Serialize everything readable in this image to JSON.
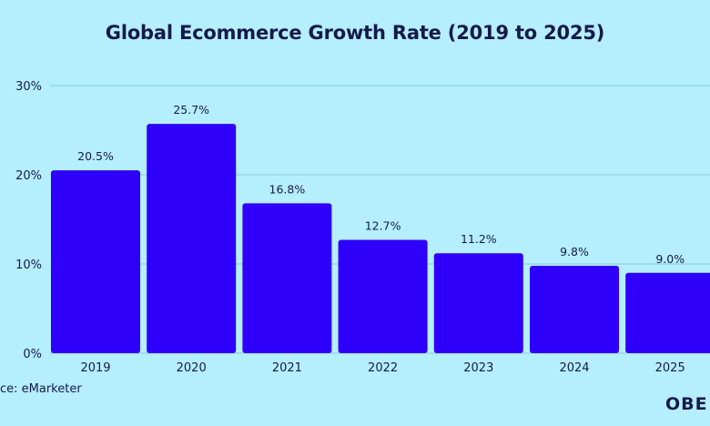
{
  "chart_data": {
    "type": "bar",
    "title": "Global Ecommerce Growth Rate (2019 to 2025)",
    "categories": [
      "2019",
      "2020",
      "2021",
      "2022",
      "2023",
      "2024",
      "2025"
    ],
    "values": [
      20.5,
      25.7,
      16.8,
      12.7,
      11.2,
      9.8,
      9.0
    ],
    "data_labels": [
      "20.5%",
      "25.7%",
      "16.8%",
      "12.7%",
      "11.2%",
      "9.8%",
      "9.0%"
    ],
    "y_ticks": [
      0,
      10,
      20,
      30
    ],
    "y_tick_labels": [
      "0%",
      "10%",
      "20%",
      "30%"
    ],
    "ylim": [
      0,
      30
    ],
    "xlabel": "",
    "ylabel": "",
    "grid": true,
    "bar_color": "#2e00fa",
    "background_color": "#b5eefd",
    "grid_color": "#8cc9de",
    "text_color": "#161a4a"
  },
  "source_text": "ce: eMarketer",
  "brand_logo_text": "OBE"
}
